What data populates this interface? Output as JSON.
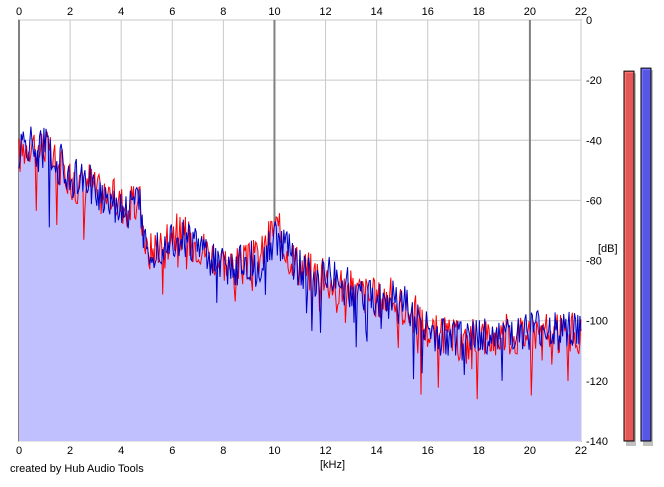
{
  "chart_data": {
    "type": "area",
    "title": "",
    "xlabel": "[kHz]",
    "ylabel": "[dB]",
    "xlim": [
      0,
      22
    ],
    "ylim": [
      -140,
      0
    ],
    "x_ticks": [
      0,
      2,
      4,
      6,
      8,
      10,
      12,
      14,
      16,
      18,
      20,
      22
    ],
    "y_ticks": [
      0,
      -20,
      -40,
      -60,
      -80,
      -100,
      -120,
      -140
    ],
    "grid": true,
    "series": [
      {
        "color": "#ff0000",
        "x": [
          0,
          0.25,
          0.5,
          0.75,
          1,
          1.25,
          1.5,
          1.75,
          2,
          2.25,
          2.5,
          2.75,
          3,
          3.25,
          3.5,
          3.75,
          4,
          4.25,
          4.5,
          4.75,
          5,
          5.5,
          6,
          6.5,
          7,
          7.5,
          8,
          8.5,
          9,
          9.5,
          10,
          10.5,
          11,
          11.5,
          12,
          12.5,
          13,
          13.5,
          14,
          14.5,
          15,
          15.5,
          16,
          16.5,
          17,
          17.5,
          18,
          18.5,
          19,
          19.5,
          20,
          20.5,
          21,
          21.5,
          22
        ],
        "values": [
          -45,
          -42,
          -40,
          -43,
          -41,
          -46,
          -48,
          -50,
          -52,
          -55,
          -54,
          -53,
          -57,
          -58,
          -57,
          -60,
          -61,
          -62,
          -62,
          -61,
          -78,
          -74,
          -70,
          -72,
          -74,
          -78,
          -80,
          -82,
          -81,
          -78,
          -68,
          -76,
          -82,
          -84,
          -86,
          -88,
          -90,
          -91,
          -93,
          -92,
          -95,
          -98,
          -103,
          -105,
          -106,
          -108,
          -104,
          -106,
          -104,
          -105,
          -103,
          -104,
          -105,
          -103,
          -106
        ]
      },
      {
        "color": "#0000c0",
        "x": [
          0,
          0.25,
          0.5,
          0.75,
          1,
          1.25,
          1.5,
          1.75,
          2,
          2.25,
          2.5,
          2.75,
          3,
          3.25,
          3.5,
          3.75,
          4,
          4.25,
          4.5,
          4.75,
          5,
          5.5,
          6,
          6.5,
          7,
          7.5,
          8,
          8.5,
          9,
          9.5,
          10,
          10.5,
          11,
          11.5,
          12,
          12.5,
          13,
          13.5,
          14,
          14.5,
          15,
          15.5,
          16,
          16.5,
          17,
          17.5,
          18,
          18.5,
          19,
          19.5,
          20,
          20.5,
          21,
          21.5,
          22
        ],
        "values": [
          -44,
          -41,
          -42,
          -44,
          -42,
          -45,
          -47,
          -49,
          -52,
          -53,
          -55,
          -54,
          -56,
          -59,
          -58,
          -61,
          -62,
          -63,
          -61,
          -62,
          -77,
          -75,
          -72,
          -73,
          -75,
          -79,
          -81,
          -82,
          -80,
          -80,
          -72,
          -77,
          -83,
          -85,
          -85,
          -87,
          -89,
          -90,
          -92,
          -93,
          -95,
          -97,
          -104,
          -106,
          -107,
          -107,
          -105,
          -105,
          -104,
          -104,
          -104,
          -103,
          -104,
          -102,
          -105
        ]
      }
    ]
  },
  "meters": [
    {
      "color": "#ff0000",
      "level_db": -17
    },
    {
      "color": "#0000ff",
      "level_db": -16
    }
  ],
  "colors": {
    "fill": "#c0c0ff",
    "grid": "#c8c8c8",
    "major_grid": "#808080"
  },
  "credit": "created by Hub Audio Tools"
}
